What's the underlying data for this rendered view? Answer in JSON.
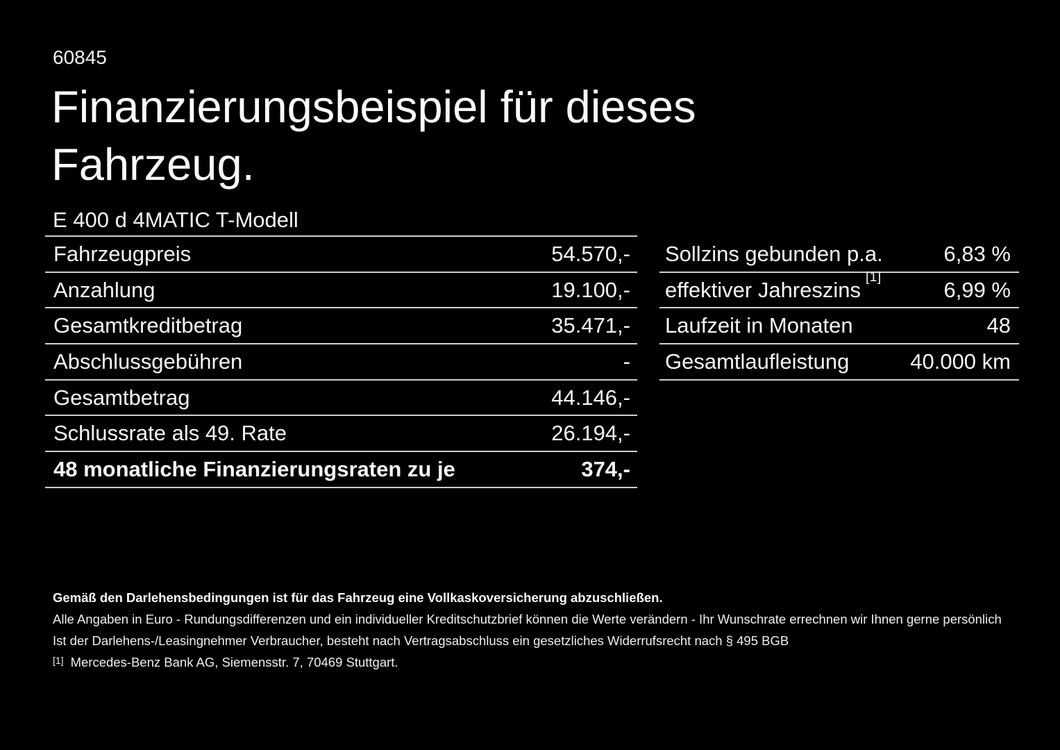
{
  "page": {
    "doc_number": "60845",
    "title": "Finanzierungsbeispiel für dieses\nFahrzeug.",
    "vehicle_model": "E 400 d 4MATIC T-Modell"
  },
  "finance_table": {
    "rows": [
      {
        "label": "Fahrzeugpreis",
        "value": "54.570,-"
      },
      {
        "label": "Anzahlung",
        "value": "19.100,-"
      },
      {
        "label": "Gesamtkreditbetrag",
        "value": "35.471,-"
      },
      {
        "label": "Abschlussgebühren",
        "value": "-"
      },
      {
        "label": "Gesamtbetrag",
        "value": "44.146,-"
      },
      {
        "label": "Schlussrate als 49. Rate",
        "value": "26.194,-"
      },
      {
        "label": "48 monatliche Finanzierungsraten zu je",
        "value": "374,-"
      }
    ]
  },
  "conditions_table": {
    "rows": [
      {
        "label": "Sollzins gebunden p.a.",
        "value": "6,83 %"
      },
      {
        "label": "effektiver Jahreszins",
        "footnote_marker": "[1]",
        "value": "6,99 %"
      },
      {
        "label": "Laufzeit in Monaten",
        "value": "48"
      },
      {
        "label": "Gesamtlaufleistung",
        "value": "40.000 km"
      }
    ]
  },
  "footer": {
    "insurance_note": "Gemäß den Darlehensbedingungen ist für das Fahrzeug eine Vollkaskoversicherung abzuschließen.",
    "disclaimer_line1": "Alle Angaben in Euro - Rundungsdifferenzen und ein individueller Kreditschutzbrief können die Werte verändern - Ihr Wunschrate errechnen wir Ihnen gerne persönlich",
    "disclaimer_line2": "Ist der Darlehens-/Leasingnehmer Verbraucher, besteht nach Vertragsabschluss ein gesetzliches Widerrufsrecht nach § 495 BGB",
    "footnote_marker": "[1]",
    "footnote_text": "Mercedes-Benz Bank AG, Siemensstr. 7, 70469 Stuttgart."
  },
  "colors": {
    "background": "#000000",
    "text": "#ffffff",
    "rule": "#cfcfcf"
  }
}
